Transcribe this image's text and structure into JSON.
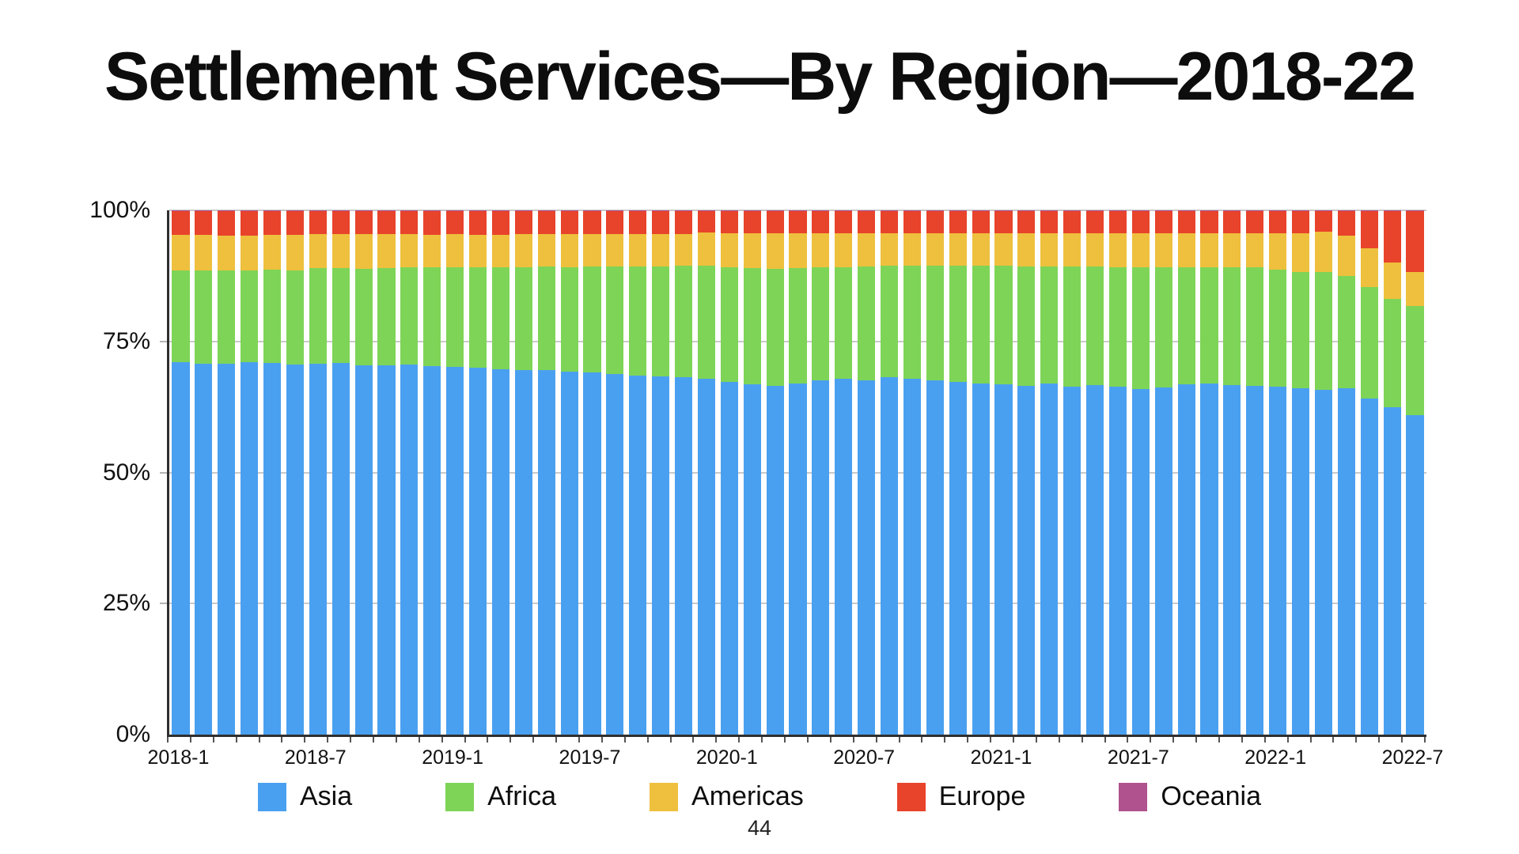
{
  "page_number": "44",
  "chart_data": {
    "type": "bar",
    "stacked": true,
    "percent_stacked": true,
    "title": "Settlement Services—By Region—2018-22",
    "xlabel": "",
    "ylabel": "",
    "ylim": [
      0,
      100
    ],
    "grid": "horizontal",
    "legend_position": "bottom",
    "y_ticks": [
      "0%",
      "25%",
      "50%",
      "75%",
      "100%"
    ],
    "x_tick_labels": [
      "2018-1",
      "2018-7",
      "2019-1",
      "2019-7",
      "2020-1",
      "2020-7",
      "2021-1",
      "2021-7",
      "2022-1",
      "2022-7"
    ],
    "x_tick_indices": [
      0,
      6,
      12,
      18,
      24,
      30,
      36,
      42,
      48,
      54
    ],
    "x": [
      "2018-1",
      "2018-2",
      "2018-3",
      "2018-4",
      "2018-5",
      "2018-6",
      "2018-7",
      "2018-8",
      "2018-9",
      "2018-10",
      "2018-11",
      "2018-12",
      "2019-1",
      "2019-2",
      "2019-3",
      "2019-4",
      "2019-5",
      "2019-6",
      "2019-7",
      "2019-8",
      "2019-9",
      "2019-10",
      "2019-11",
      "2019-12",
      "2020-1",
      "2020-2",
      "2020-3",
      "2020-4",
      "2020-5",
      "2020-6",
      "2020-7",
      "2020-8",
      "2020-9",
      "2020-10",
      "2020-11",
      "2020-12",
      "2021-1",
      "2021-2",
      "2021-3",
      "2021-4",
      "2021-5",
      "2021-6",
      "2021-7",
      "2021-8",
      "2021-9",
      "2021-10",
      "2021-11",
      "2021-12",
      "2022-1",
      "2022-2",
      "2022-3",
      "2022-4",
      "2022-5",
      "2022-6",
      "2022-7"
    ],
    "series": [
      {
        "name": "Asia",
        "color": "#4AA0F0",
        "values": [
          71.0,
          70.7,
          70.8,
          71.0,
          70.9,
          70.6,
          70.7,
          70.9,
          70.5,
          70.4,
          70.6,
          70.3,
          70.2,
          70.0,
          69.7,
          69.5,
          69.6,
          69.3,
          69.1,
          68.8,
          68.5,
          68.3,
          68.1,
          67.9,
          67.2,
          66.8,
          66.5,
          67.0,
          67.5,
          67.8,
          67.6,
          68.1,
          67.8,
          67.5,
          67.3,
          67.0,
          66.8,
          66.5,
          66.9,
          66.4,
          66.6,
          66.3,
          65.9,
          66.2,
          66.8,
          66.9,
          66.7,
          66.5,
          66.3,
          66.0,
          65.7,
          66.0,
          64.1,
          62.4,
          61.0
        ]
      },
      {
        "name": "Africa",
        "color": "#7ED457",
        "values": [
          17.5,
          17.8,
          17.7,
          17.6,
          17.8,
          18.0,
          18.3,
          18.1,
          18.4,
          18.6,
          18.5,
          18.8,
          18.9,
          19.1,
          19.4,
          19.6,
          19.7,
          19.9,
          20.2,
          20.5,
          20.8,
          21.0,
          21.3,
          21.6,
          21.9,
          22.2,
          22.4,
          22.0,
          21.6,
          21.4,
          21.7,
          21.3,
          21.6,
          21.9,
          22.1,
          22.4,
          22.6,
          22.8,
          22.4,
          22.9,
          22.7,
          22.9,
          23.2,
          22.9,
          22.4,
          22.3,
          22.5,
          22.6,
          22.4,
          22.3,
          22.5,
          21.5,
          21.3,
          20.7,
          20.8
        ]
      },
      {
        "name": "Americas",
        "color": "#EEC03D",
        "values": [
          6.8,
          6.8,
          6.7,
          6.6,
          6.6,
          6.7,
          6.4,
          6.4,
          6.5,
          6.4,
          6.3,
          6.2,
          6.3,
          6.2,
          6.2,
          6.3,
          6.1,
          6.2,
          6.1,
          6.2,
          6.2,
          6.2,
          6.1,
          6.3,
          6.5,
          6.6,
          6.7,
          6.6,
          6.5,
          6.4,
          6.3,
          6.2,
          6.2,
          6.2,
          6.2,
          6.2,
          6.2,
          6.3,
          6.3,
          6.3,
          6.3,
          6.4,
          6.5,
          6.5,
          6.4,
          6.4,
          6.4,
          6.5,
          6.9,
          7.3,
          7.8,
          7.7,
          7.4,
          7.0,
          6.5
        ]
      },
      {
        "name": "Europe",
        "color": "#E8432B",
        "values": [
          4.6,
          4.6,
          4.7,
          4.7,
          4.6,
          4.6,
          4.5,
          4.5,
          4.5,
          4.5,
          4.5,
          4.6,
          4.5,
          4.6,
          4.6,
          4.5,
          4.5,
          4.5,
          4.5,
          4.4,
          4.4,
          4.4,
          4.4,
          4.1,
          4.3,
          4.3,
          4.3,
          4.3,
          4.3,
          4.3,
          4.3,
          4.3,
          4.3,
          4.3,
          4.3,
          4.3,
          4.3,
          4.3,
          4.3,
          4.3,
          4.3,
          4.3,
          4.3,
          4.3,
          4.3,
          4.3,
          4.3,
          4.3,
          4.3,
          4.3,
          3.9,
          4.7,
          7.1,
          9.8,
          11.6
        ]
      },
      {
        "name": "Oceania",
        "color": "#AF528D",
        "values": [
          0.1,
          0.1,
          0.1,
          0.1,
          0.1,
          0.1,
          0.1,
          0.1,
          0.1,
          0.1,
          0.1,
          0.1,
          0.1,
          0.1,
          0.1,
          0.1,
          0.1,
          0.1,
          0.1,
          0.1,
          0.1,
          0.1,
          0.1,
          0.1,
          0.1,
          0.1,
          0.1,
          0.1,
          0.1,
          0.1,
          0.1,
          0.1,
          0.1,
          0.1,
          0.1,
          0.1,
          0.1,
          0.1,
          0.1,
          0.1,
          0.1,
          0.1,
          0.1,
          0.1,
          0.1,
          0.1,
          0.1,
          0.1,
          0.1,
          0.1,
          0.1,
          0.1,
          0.1,
          0.1,
          0.1
        ]
      }
    ],
    "colors": {
      "axis": "#2f2f2f",
      "gridline": "#c9c9c9",
      "tick": "#555555",
      "text": "#0d0d0d"
    }
  }
}
